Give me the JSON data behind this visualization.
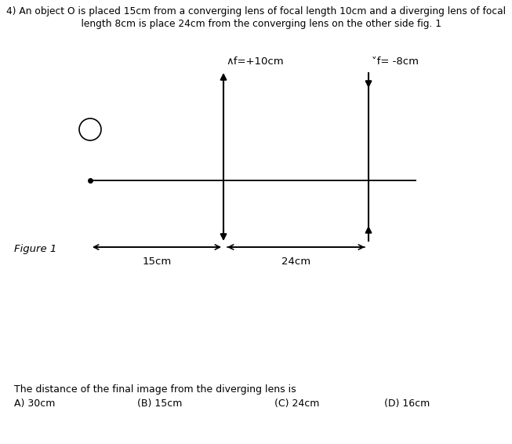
{
  "title_line1": "4) An object O is placed 15cm from a converging lens of focal length 10cm and a diverging lens of focal",
  "title_line2": "    length 8cm is place 24cm from the converging lens on the other side fig. 1",
  "figure_label": "Figure 1",
  "label_converging": "f=+10cm",
  "label_diverging": "f= -8cm",
  "label_15cm": "15cm",
  "label_24cm": "24cm",
  "question": "The distance of the final image from the diverging lens is",
  "option_A": "A) 30cm",
  "option_B": "(B) 15cm",
  "option_C": "(C) 24cm",
  "option_D": "(D) 16cm",
  "bg_color": "#ffffff",
  "line_color": "#000000",
  "text_color": "#000000",
  "fig_width": 6.53,
  "fig_height": 5.66
}
